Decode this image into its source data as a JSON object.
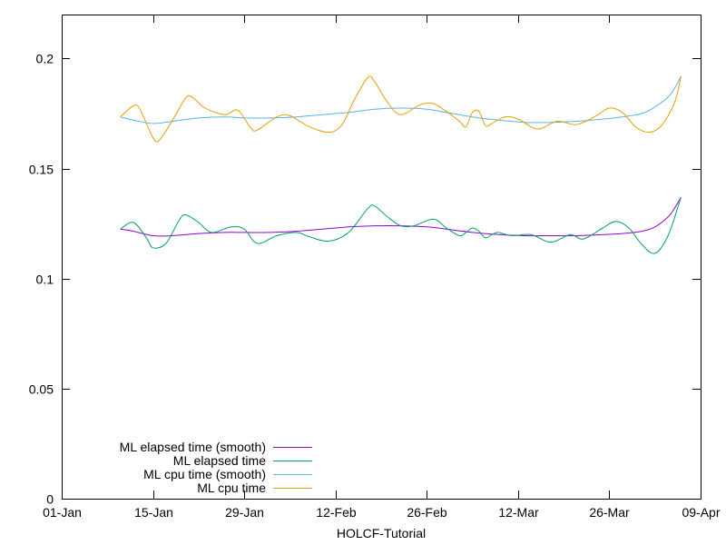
{
  "chart_data": {
    "type": "line",
    "title": "",
    "xlabel": "HOLCF-Tutorial",
    "ylabel": "",
    "x_ticks": [
      "01-Jan",
      "15-Jan",
      "29-Jan",
      "12-Feb",
      "26-Feb",
      "12-Mar",
      "26-Mar",
      "09-Apr"
    ],
    "y_ticks": [
      "0",
      "0.05",
      "0.1",
      "0.15",
      "0.2"
    ],
    "ylim": [
      0,
      0.22
    ],
    "xlim": [
      "01-Jan",
      "09-Apr"
    ],
    "grid": false,
    "legend_position": "bottom-left",
    "series": [
      {
        "name": "ML elapsed time (smooth)",
        "color": "#9400d3",
        "points": [
          [
            "10-Jan",
            0.1225
          ],
          [
            "12-Jan",
            0.1215
          ],
          [
            "15-Jan",
            0.1195
          ],
          [
            "18-Jan",
            0.1195
          ],
          [
            "22-Jan",
            0.1205
          ],
          [
            "26-Jan",
            0.121
          ],
          [
            "29-Jan",
            0.121
          ],
          [
            "02-Feb",
            0.121
          ],
          [
            "06-Feb",
            0.1215
          ],
          [
            "10-Feb",
            0.1225
          ],
          [
            "14-Feb",
            0.1235
          ],
          [
            "18-Feb",
            0.124
          ],
          [
            "22-Feb",
            0.124
          ],
          [
            "26-Feb",
            0.1235
          ],
          [
            "01-Mar",
            0.1225
          ],
          [
            "05-Mar",
            0.121
          ],
          [
            "09-Mar",
            0.12
          ],
          [
            "13-Mar",
            0.1195
          ],
          [
            "17-Mar",
            0.1195
          ],
          [
            "21-Mar",
            0.1195
          ],
          [
            "25-Mar",
            0.12
          ],
          [
            "28-Mar",
            0.1205
          ],
          [
            "31-Mar",
            0.1215
          ],
          [
            "02-Apr",
            0.1235
          ],
          [
            "04-Apr",
            0.128
          ],
          [
            "05-Apr",
            0.132
          ],
          [
            "06-Apr",
            0.137
          ]
        ]
      },
      {
        "name": "ML elapsed time",
        "color": "#009e73",
        "points": [
          [
            "10-Jan",
            0.1225
          ],
          [
            "12-Jan",
            0.1255
          ],
          [
            "14-Jan",
            0.1185
          ],
          [
            "15-Jan",
            0.114
          ],
          [
            "17-Jan",
            0.116
          ],
          [
            "19-Jan",
            0.1265
          ],
          [
            "20-Jan",
            0.129
          ],
          [
            "22-Jan",
            0.1255
          ],
          [
            "24-Jan",
            0.121
          ],
          [
            "27-Jan",
            0.1235
          ],
          [
            "29-Jan",
            0.1225
          ],
          [
            "31-Jan",
            0.116
          ],
          [
            "03-Feb",
            0.1195
          ],
          [
            "06-Feb",
            0.121
          ],
          [
            "08-Feb",
            0.119
          ],
          [
            "11-Feb",
            0.117
          ],
          [
            "14-Feb",
            0.121
          ],
          [
            "17-Feb",
            0.132
          ],
          [
            "18-Feb",
            0.133
          ],
          [
            "20-Feb",
            0.128
          ],
          [
            "22-Feb",
            0.124
          ],
          [
            "24-Feb",
            0.124
          ],
          [
            "27-Feb",
            0.127
          ],
          [
            "01-Mar",
            0.123
          ],
          [
            "03-Mar",
            0.1195
          ],
          [
            "04-Mar",
            0.121
          ],
          [
            "05-Mar",
            0.123
          ],
          [
            "06-Mar",
            0.1215
          ],
          [
            "07-Mar",
            0.1185
          ],
          [
            "08-Mar",
            0.12
          ],
          [
            "09-Mar",
            0.121
          ],
          [
            "11-Mar",
            0.1195
          ],
          [
            "14-Mar",
            0.12
          ],
          [
            "17-Mar",
            0.1165
          ],
          [
            "20-Mar",
            0.12
          ],
          [
            "22-Mar",
            0.118
          ],
          [
            "25-Mar",
            0.123
          ],
          [
            "27-Mar",
            0.126
          ],
          [
            "29-Mar",
            0.123
          ],
          [
            "31-Mar",
            0.1155
          ],
          [
            "02-Apr",
            0.1115
          ],
          [
            "04-Apr",
            0.1195
          ],
          [
            "06-Apr",
            0.137
          ]
        ]
      },
      {
        "name": "ML cpu time (smooth)",
        "color": "#56b4e9",
        "points": [
          [
            "10-Jan",
            0.1735
          ],
          [
            "12-Jan",
            0.172
          ],
          [
            "15-Jan",
            0.1705
          ],
          [
            "18-Jan",
            0.1715
          ],
          [
            "22-Jan",
            0.173
          ],
          [
            "26-Jan",
            0.1735
          ],
          [
            "29-Jan",
            0.173
          ],
          [
            "02-Feb",
            0.173
          ],
          [
            "06-Feb",
            0.1735
          ],
          [
            "10-Feb",
            0.1745
          ],
          [
            "14-Feb",
            0.1755
          ],
          [
            "18-Feb",
            0.177
          ],
          [
            "22-Feb",
            0.1775
          ],
          [
            "26-Feb",
            0.177
          ],
          [
            "01-Mar",
            0.1755
          ],
          [
            "05-Mar",
            0.1735
          ],
          [
            "09-Mar",
            0.172
          ],
          [
            "13-Mar",
            0.171
          ],
          [
            "17-Mar",
            0.171
          ],
          [
            "21-Mar",
            0.1715
          ],
          [
            "25-Mar",
            0.1725
          ],
          [
            "28-Mar",
            0.1735
          ],
          [
            "31-Mar",
            0.175
          ],
          [
            "02-Apr",
            0.178
          ],
          [
            "04-Apr",
            0.1825
          ],
          [
            "05-Apr",
            0.1865
          ],
          [
            "06-Apr",
            0.192
          ]
        ]
      },
      {
        "name": "ML cpu time",
        "color": "#e69f00",
        "points": [
          [
            "10-Jan",
            0.1735
          ],
          [
            "12-Jan",
            0.1785
          ],
          [
            "13-Jan",
            0.177
          ],
          [
            "15-Jan",
            0.164
          ],
          [
            "16-Jan",
            0.163
          ],
          [
            "18-Jan",
            0.172
          ],
          [
            "20-Jan",
            0.182
          ],
          [
            "21-Jan",
            0.1825
          ],
          [
            "23-Jan",
            0.1775
          ],
          [
            "26-Jan",
            0.1745
          ],
          [
            "28-Jan",
            0.1765
          ],
          [
            "30-Jan",
            0.1685
          ],
          [
            "31-Jan",
            0.1675
          ],
          [
            "03-Feb",
            0.1735
          ],
          [
            "05-Feb",
            0.174
          ],
          [
            "08-Feb",
            0.169
          ],
          [
            "11-Feb",
            0.1665
          ],
          [
            "13-Feb",
            0.17
          ],
          [
            "15-Feb",
            0.182
          ],
          [
            "17-Feb",
            0.1915
          ],
          [
            "18-Feb",
            0.1895
          ],
          [
            "20-Feb",
            0.18
          ],
          [
            "22-Feb",
            0.1745
          ],
          [
            "25-Feb",
            0.179
          ],
          [
            "27-Feb",
            0.1795
          ],
          [
            "01-Mar",
            0.176
          ],
          [
            "03-Mar",
            0.1715
          ],
          [
            "04-Mar",
            0.169
          ],
          [
            "05-Mar",
            0.1755
          ],
          [
            "06-Mar",
            0.176
          ],
          [
            "07-Mar",
            0.1695
          ],
          [
            "08-Mar",
            0.1705
          ],
          [
            "10-Mar",
            0.1735
          ],
          [
            "12-Mar",
            0.1725
          ],
          [
            "15-Mar",
            0.168
          ],
          [
            "18-Mar",
            0.1715
          ],
          [
            "21-Mar",
            0.17
          ],
          [
            "24-Mar",
            0.174
          ],
          [
            "26-Mar",
            0.1775
          ],
          [
            "28-Mar",
            0.1755
          ],
          [
            "30-Mar",
            0.169
          ],
          [
            "01-Apr",
            0.1665
          ],
          [
            "03-Apr",
            0.1695
          ],
          [
            "05-Apr",
            0.18
          ],
          [
            "06-Apr",
            0.192
          ]
        ]
      }
    ]
  }
}
